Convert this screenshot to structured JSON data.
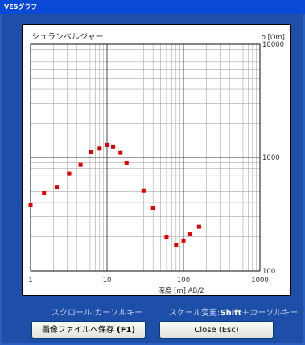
{
  "window": {
    "title": "VESグラフ"
  },
  "chart_data": {
    "type": "scatter",
    "title": "シュランベルジャー",
    "xlabel": "深度 [m]   AB/2",
    "ylabel": "ρ [Ωm]",
    "x_scale": "log",
    "y_scale": "log",
    "xlim": [
      1,
      1000
    ],
    "ylim": [
      100,
      10000
    ],
    "x_ticks": [
      "1",
      "10",
      "100",
      "1000"
    ],
    "y_ticks": [
      "100",
      "1000",
      "10000"
    ],
    "grid": true,
    "marker_color": "#e00000",
    "points": [
      {
        "x": 1.0,
        "y": 380
      },
      {
        "x": 1.5,
        "y": 490
      },
      {
        "x": 2.2,
        "y": 550
      },
      {
        "x": 3.2,
        "y": 720
      },
      {
        "x": 4.5,
        "y": 860
      },
      {
        "x": 6.2,
        "y": 1120
      },
      {
        "x": 8.0,
        "y": 1200
      },
      {
        "x": 10.0,
        "y": 1290
      },
      {
        "x": 12.0,
        "y": 1250
      },
      {
        "x": 15.0,
        "y": 1100
      },
      {
        "x": 18.0,
        "y": 900
      },
      {
        "x": 30.0,
        "y": 510
      },
      {
        "x": 40.0,
        "y": 360
      },
      {
        "x": 60.0,
        "y": 200
      },
      {
        "x": 80.0,
        "y": 170
      },
      {
        "x": 100.0,
        "y": 185
      },
      {
        "x": 120.0,
        "y": 210
      },
      {
        "x": 160.0,
        "y": 245
      }
    ]
  },
  "footer": {
    "scroll_hint": "スクロール:カーソルキー",
    "scale_hint_prefix": "スケール変更:",
    "scale_hint_key": "Shift",
    "scale_hint_suffix": "＋カーソルキー",
    "save_button": "画像ファイルへ保存",
    "save_shortcut": "(F1)",
    "close_button": "Close (Esc)"
  }
}
